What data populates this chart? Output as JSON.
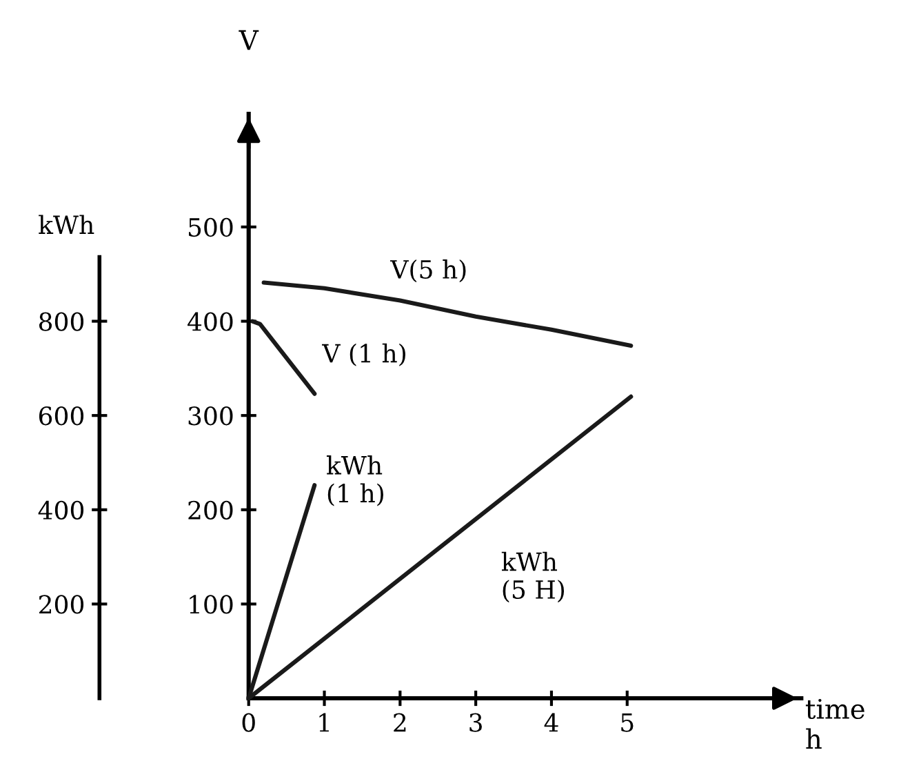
{
  "chart_data": {
    "type": "line",
    "xlabel": "time\nh",
    "ylabel": "V",
    "y2label": "kWh",
    "xlim": [
      0,
      7.3
    ],
    "xticks": [
      0,
      1,
      2,
      3,
      4,
      5
    ],
    "ylim": [
      0,
      620
    ],
    "yticks": [
      100,
      200,
      300,
      400,
      500
    ],
    "y2lim": [
      0,
      1240
    ],
    "y2ticks": [
      200,
      400,
      600,
      800
    ],
    "grid": false,
    "marker": "none",
    "line_style": "solid",
    "series": [
      {
        "name": "V(5 h)",
        "color": "#1a1a1a",
        "x": [
          0.2,
          1,
          2,
          3,
          4,
          5.05
        ],
        "values": [
          441,
          435,
          422,
          405,
          391,
          374
        ]
      },
      {
        "name": "V (1 h)",
        "color": "#1a1a1a",
        "x": [
          0.05,
          0.15,
          0.87
        ],
        "values": [
          400,
          397,
          323
        ]
      },
      {
        "name": "kWh\n(1 h)",
        "color": "#1a1a1a",
        "axis": "y2",
        "x": [
          0,
          0.87
        ],
        "values": [
          0,
          452
        ]
      },
      {
        "name": "kWh\n(5 H)",
        "color": "#1a1a1a",
        "axis": "y2",
        "x": [
          0,
          5.05
        ],
        "values": [
          0,
          640
        ]
      }
    ]
  }
}
